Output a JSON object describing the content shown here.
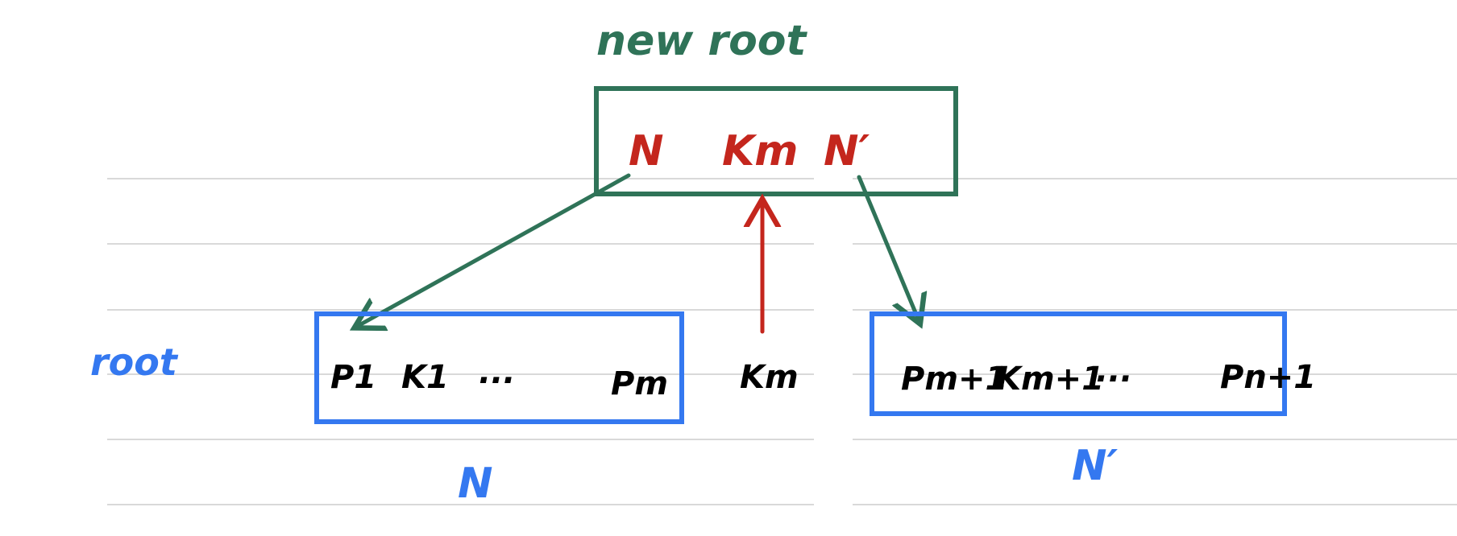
{
  "colors": {
    "green": "#2f7358",
    "red": "#c4261d",
    "blue": "#3478f0",
    "black": "#000000",
    "rule": "#d9d9d9"
  },
  "header": {
    "new_root_label": "new root"
  },
  "new_root_node": {
    "left_pointer": "N",
    "key": "Km",
    "right_pointer": "N′"
  },
  "root_label": "root",
  "left_node": {
    "first_pointer": "P1",
    "first_key": "K1",
    "ellipsis": "...",
    "last_pointer": "Pm",
    "name": "N"
  },
  "promoted_key": "Km",
  "right_node": {
    "first_pointer": "Pm+1",
    "first_key": "Km+1",
    "ellipsis": "...",
    "last_pointer": "Pn+1",
    "name": "N′"
  },
  "icons": [
    "arrow-to-left-node",
    "arrow-to-right-node",
    "arrow-key-promotion"
  ]
}
